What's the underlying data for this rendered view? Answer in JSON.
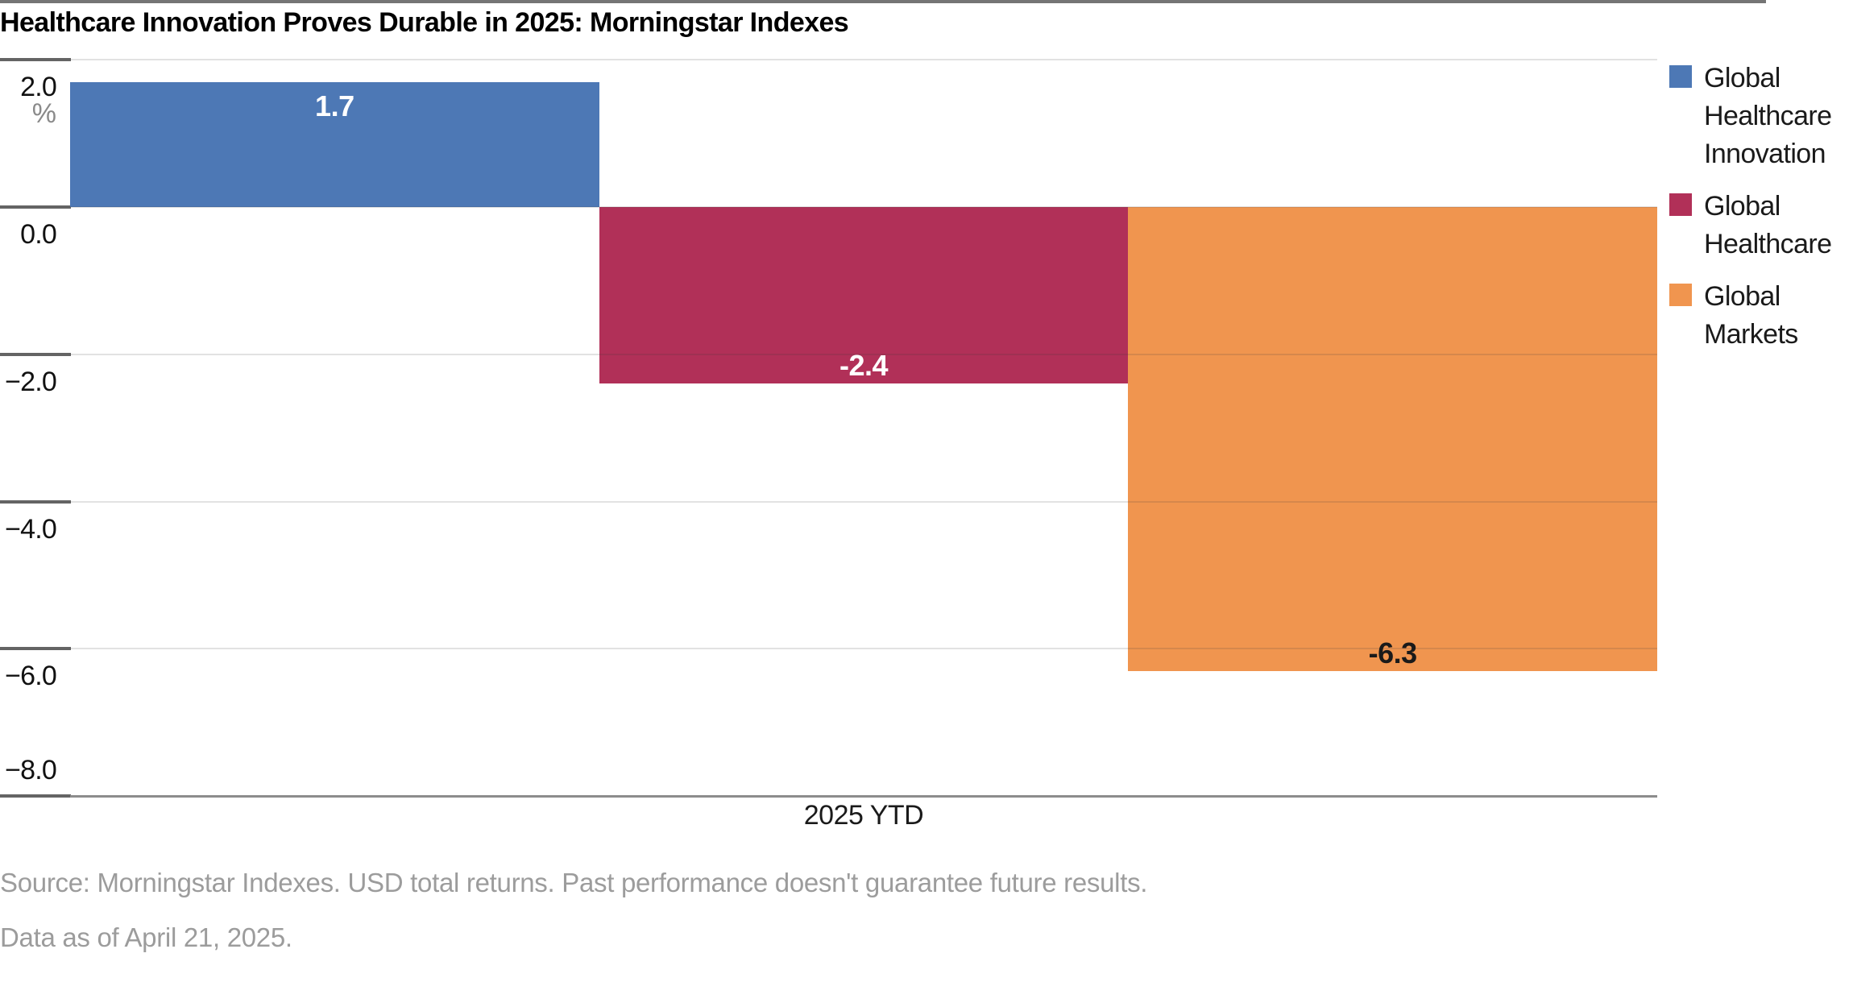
{
  "title": "Healthcare Innovation Proves Durable in 2025: Morningstar Indexes",
  "chart_data": {
    "type": "bar",
    "categories": [
      "2025 YTD"
    ],
    "series": [
      {
        "name": "Global Healthcare Innovation",
        "values": [
          1.7
        ],
        "data_label": "1.7",
        "color": "#4D78B5",
        "label_color": "#ffffff"
      },
      {
        "name": "Global Healthcare",
        "values": [
          -2.4
        ],
        "data_label": "-2.4",
        "color": "#B13058",
        "label_color": "#ffffff"
      },
      {
        "name": "Global Markets",
        "values": [
          -6.3
        ],
        "data_label": "-6.3",
        "color": "#F0954F",
        "label_color": "#1a1a1a"
      }
    ],
    "title": "Healthcare Innovation Proves Durable in 2025: Morningstar Indexes",
    "xlabel": "2025 YTD",
    "ylabel": "%",
    "ylim": [
      -8.0,
      2.0
    ],
    "yticks": [
      2.0,
      0.0,
      -2.0,
      -4.0,
      -6.0,
      -8.0
    ],
    "ytick_labels": [
      "2.0",
      "0.0",
      "−2.0",
      "−4.0",
      "−6.0",
      "−8.0"
    ],
    "grid": true,
    "legend_position": "right"
  },
  "footer": {
    "source_line": "Source: Morningstar Indexes. USD total returns. Past performance doesn't guarantee future results.",
    "as_of_line": "Data as of April 21, 2025."
  },
  "colors": {
    "bar_blue": "#4D78B5",
    "bar_crimson": "#B13058",
    "bar_orange": "#F0954F",
    "gridline": "#D9D9D9",
    "axis_line": "#8C8C8C",
    "tick": "#646464",
    "unit_text": "#8A8A8A",
    "footer_text": "#9C9C9C",
    "top_rule": "#757575"
  }
}
